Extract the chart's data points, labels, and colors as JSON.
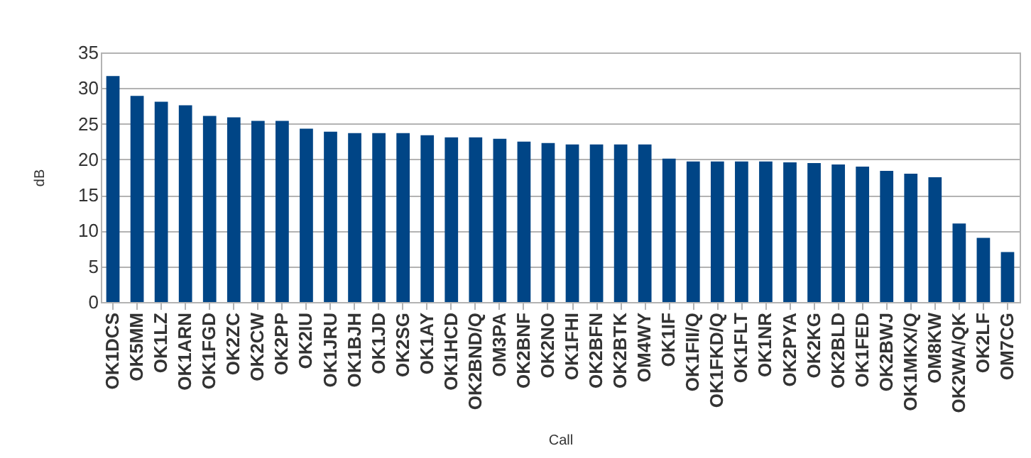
{
  "chart_data": {
    "type": "bar",
    "xlabel": "Call",
    "ylabel": "dB",
    "categories": [
      "OK1DCS",
      "OK5MM",
      "OK1LZ",
      "OK1ARN",
      "OK1FGD",
      "OK2ZC",
      "OK2CW",
      "OK2PP",
      "OK2IU",
      "OK1JRU",
      "OK1BJH",
      "OK1JD",
      "OK2SG",
      "OK1AY",
      "OK1HCD",
      "OK2BND/Q",
      "OM3PA",
      "OK2BNF",
      "OK2NO",
      "OK1FHI",
      "OK2BFN",
      "OK2BTK",
      "OM4WY",
      "OK1IF",
      "OK1FII/Q",
      "OK1FKD/Q",
      "OK1FLT",
      "OK1NR",
      "OK2PYA",
      "OK2KG",
      "OK2BLD",
      "OK1FED",
      "OK2BWJ",
      "OK1MKX/Q",
      "OM8KW",
      "OK2WA/QK",
      "OK2LF",
      "OM7CG"
    ],
    "values": [
      31.7,
      28.9,
      28.1,
      27.6,
      26.1,
      25.9,
      25.4,
      25.4,
      24.3,
      23.9,
      23.7,
      23.7,
      23.7,
      23.4,
      23.1,
      23.1,
      22.9,
      22.5,
      22.3,
      22.1,
      22.1,
      22.1,
      22.1,
      20.1,
      19.7,
      19.7,
      19.7,
      19.7,
      19.6,
      19.5,
      19.3,
      19.0,
      18.4,
      18.0,
      17.5,
      11.0,
      9.0,
      7.0
    ],
    "color": "#004586",
    "ylim": [
      0,
      35
    ],
    "yticks": [
      0,
      5,
      10,
      15,
      20,
      25,
      30,
      35
    ],
    "grid": "y"
  }
}
